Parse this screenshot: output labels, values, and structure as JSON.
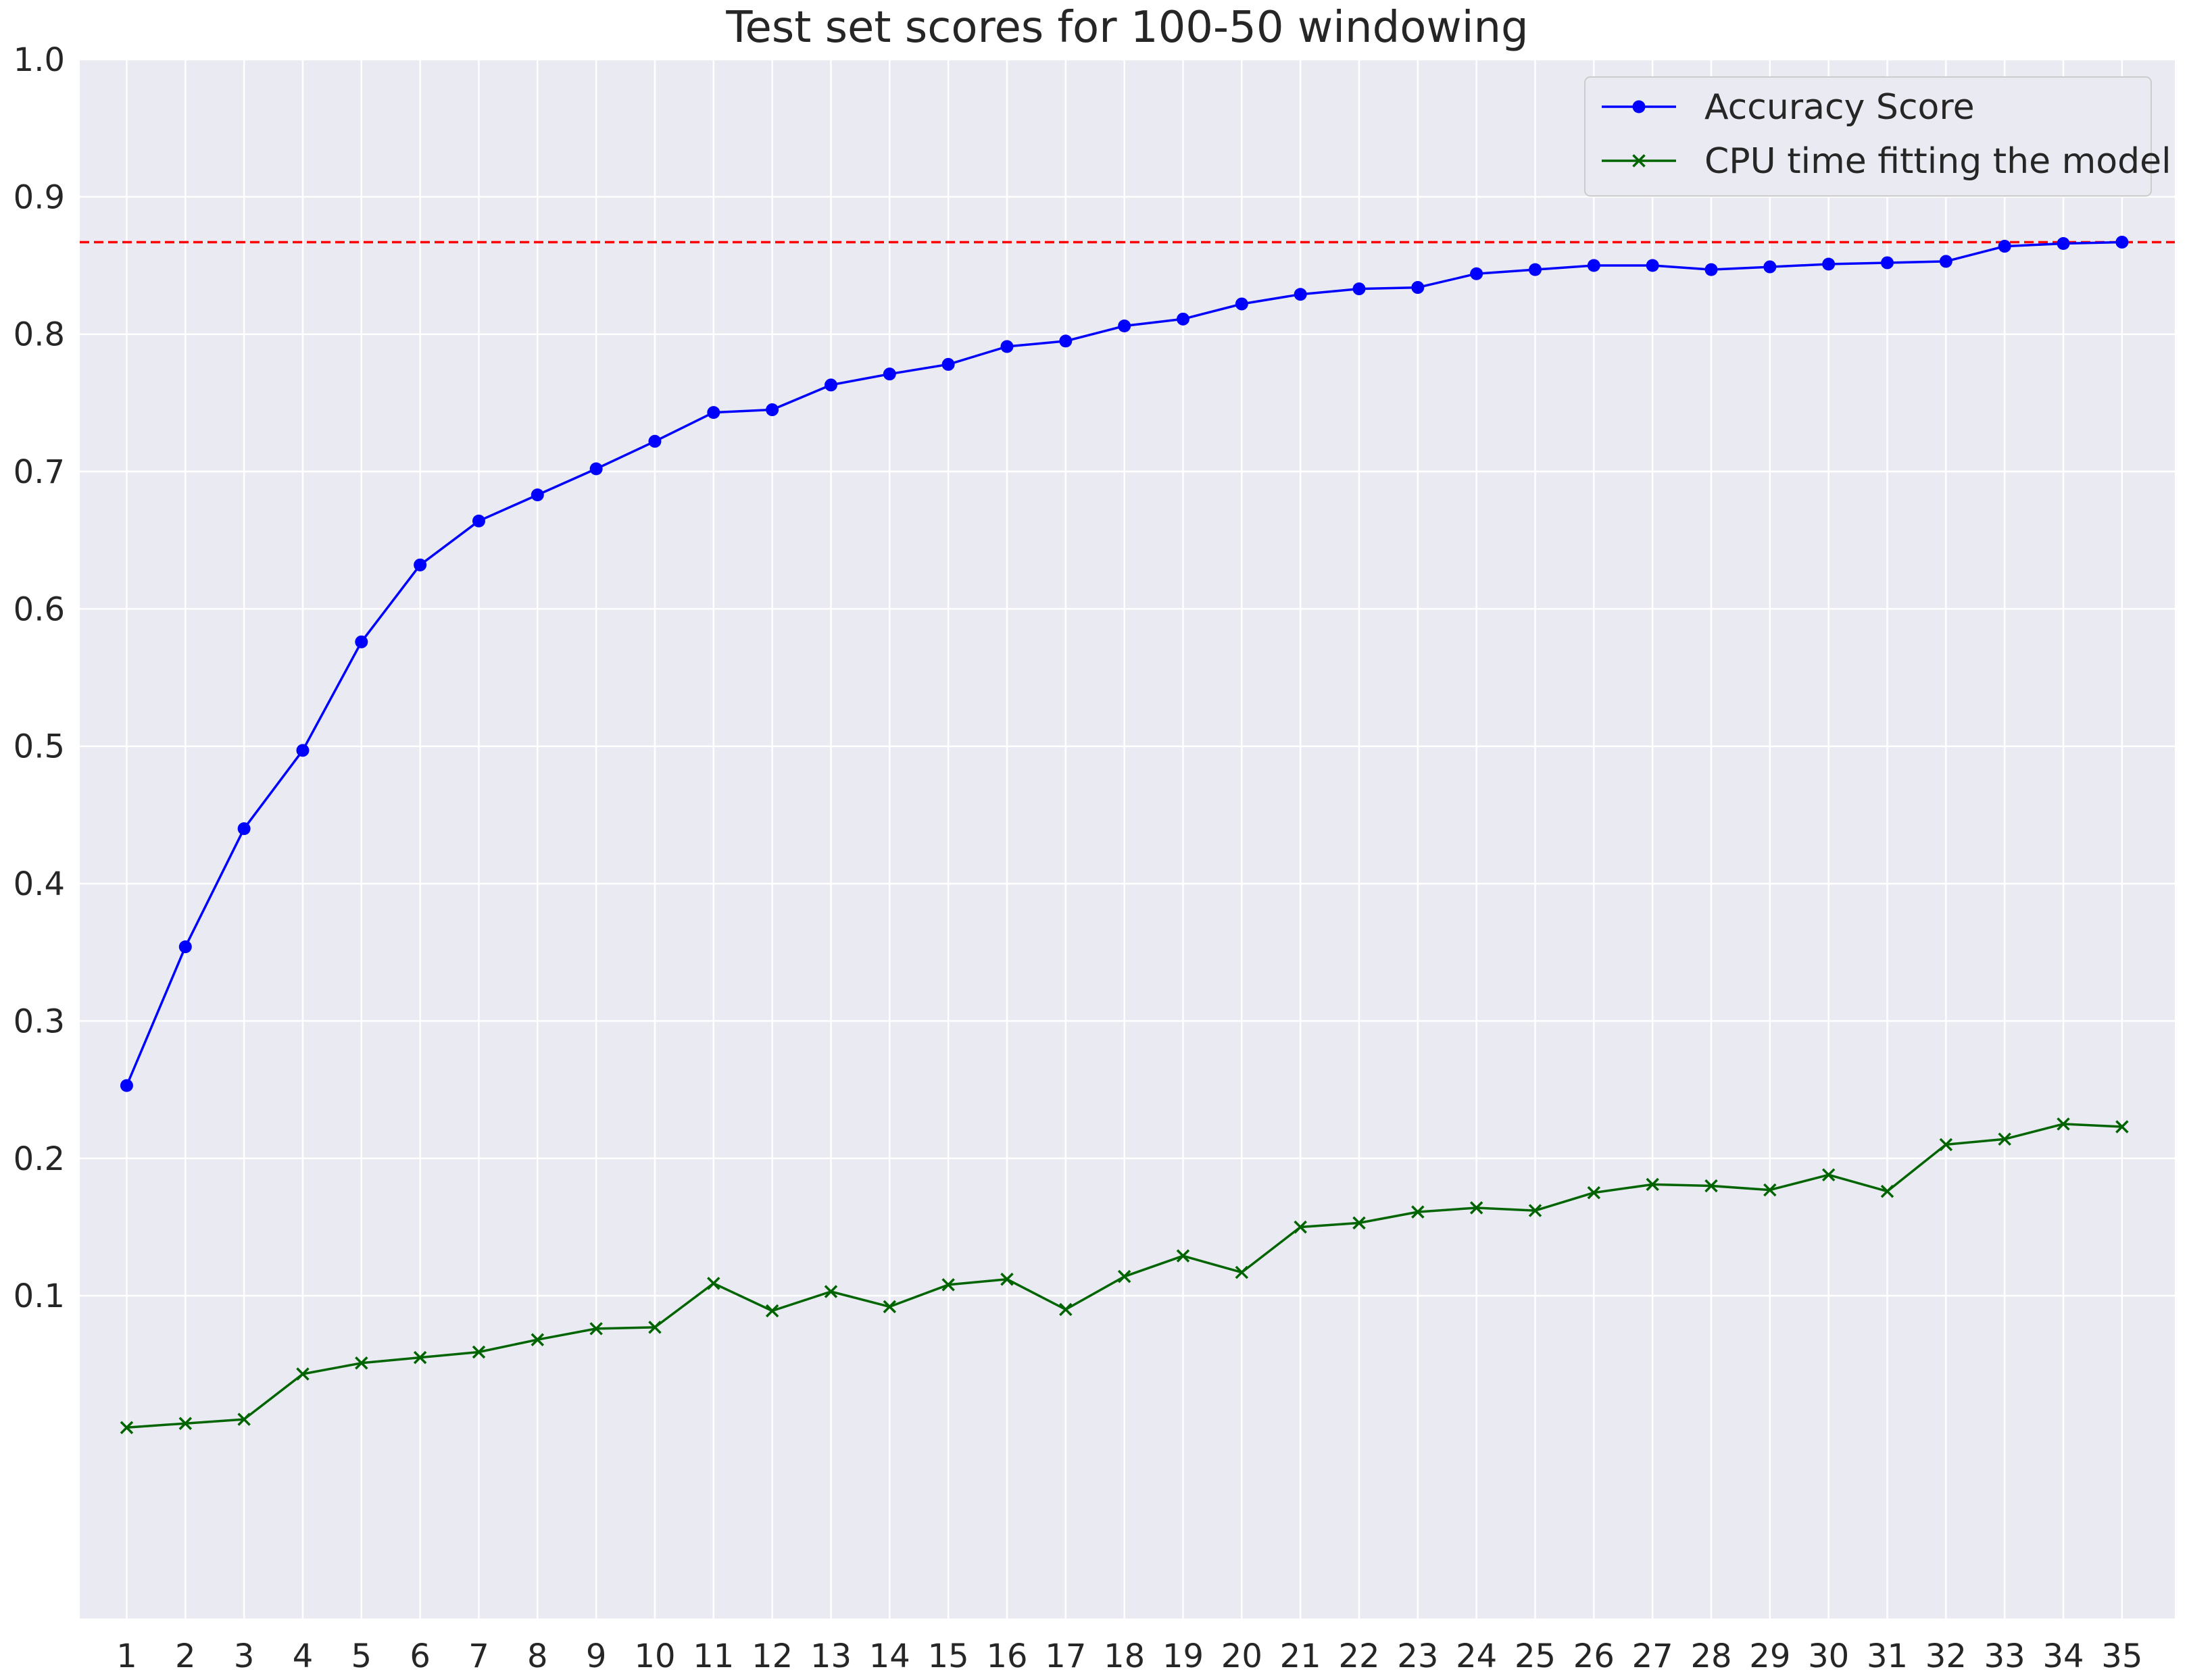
{
  "chart_data": {
    "type": "line",
    "title": "Test set scores for 100-50 windowing",
    "xlabel": "",
    "ylabel": "",
    "x": [
      1,
      2,
      3,
      4,
      5,
      6,
      7,
      8,
      9,
      10,
      11,
      12,
      13,
      14,
      15,
      16,
      17,
      18,
      19,
      20,
      21,
      22,
      23,
      24,
      25,
      26,
      27,
      28,
      29,
      30,
      31,
      32,
      33,
      34,
      35
    ],
    "x_tick_labels": [
      "1",
      "2",
      "3",
      "4",
      "5",
      "6",
      "7",
      "8",
      "9",
      "10",
      "11",
      "12",
      "13",
      "14",
      "15",
      "16",
      "17",
      "18",
      "19",
      "20",
      "21",
      "22",
      "23",
      "24",
      "25",
      "26",
      "27",
      "28",
      "29",
      "30",
      "31",
      "32",
      "33",
      "34",
      "35"
    ],
    "ylim": [
      -0.135,
      1.0
    ],
    "y_ticks": [
      0.1,
      0.2,
      0.3,
      0.4,
      0.5,
      0.6,
      0.7,
      0.8,
      0.9,
      1.0
    ],
    "y_tick_labels": [
      "0.1",
      "0.2",
      "0.3",
      "0.4",
      "0.5",
      "0.6",
      "0.7",
      "0.8",
      "0.9",
      "1.0"
    ],
    "grid": true,
    "legend_position": "top-right",
    "reference_line": {
      "y": 0.867,
      "style": "dashed",
      "color": "#ff0000"
    },
    "series": [
      {
        "name": "Accuracy Score",
        "color": "#0000ff",
        "marker": "circle",
        "values": [
          0.253,
          0.354,
          0.44,
          0.497,
          0.576,
          0.632,
          0.664,
          0.683,
          0.702,
          0.722,
          0.743,
          0.745,
          0.763,
          0.771,
          0.778,
          0.791,
          0.795,
          0.806,
          0.811,
          0.822,
          0.829,
          0.833,
          0.834,
          0.844,
          0.847,
          0.85,
          0.85,
          0.847,
          0.849,
          0.851,
          0.852,
          0.853,
          0.864,
          0.866,
          0.867
        ]
      },
      {
        "name": "CPU time fitting the model",
        "color": "#006400",
        "marker": "x",
        "values": [
          0.004,
          0.007,
          0.01,
          0.043,
          0.051,
          0.055,
          0.059,
          0.068,
          0.076,
          0.077,
          0.109,
          0.089,
          0.103,
          0.092,
          0.108,
          0.112,
          0.09,
          0.114,
          0.129,
          0.117,
          0.15,
          0.153,
          0.161,
          0.164,
          0.162,
          0.175,
          0.181,
          0.18,
          0.177,
          0.188,
          0.176,
          0.21,
          0.214,
          0.225,
          0.223
        ]
      }
    ]
  }
}
